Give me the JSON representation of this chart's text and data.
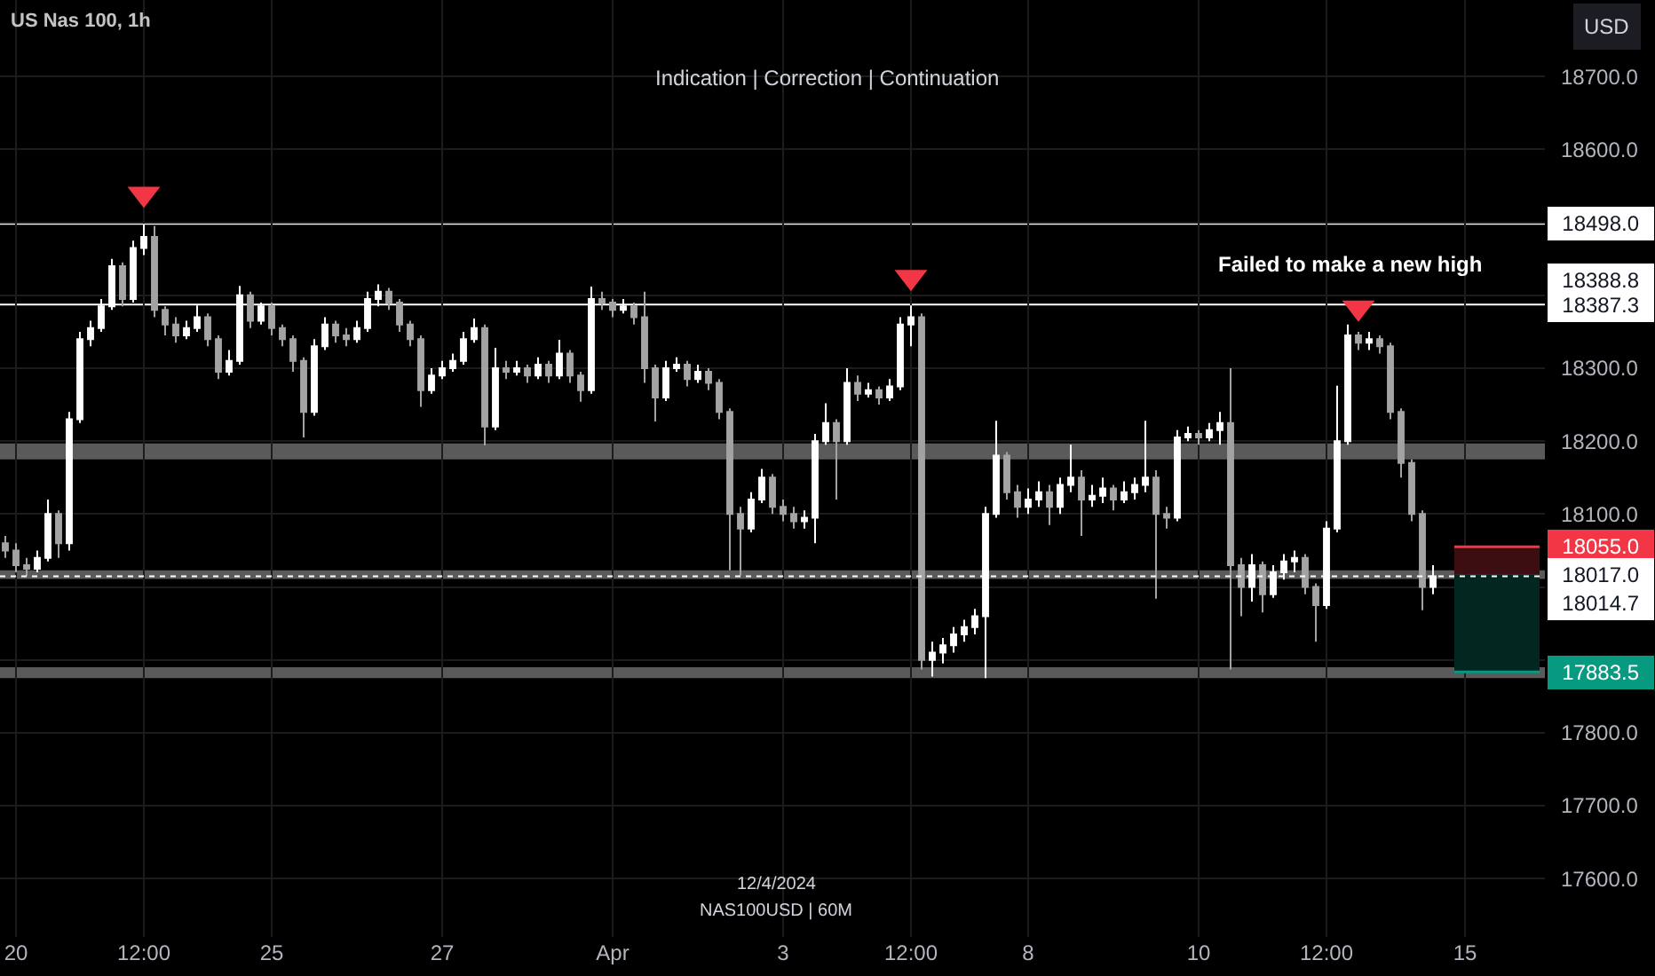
{
  "chart_data": {
    "type": "candlestick",
    "title": "US Nas 100, 1h",
    "subtitle": "Indication | Correction | Continuation",
    "ylabel": "USD",
    "annotations": [
      "Failed to make a new high",
      "12/4/2024",
      "NAS100USD | 60M",
      "18388.8"
    ],
    "categories": [
      null,
      "20",
      null,
      null,
      null,
      null,
      null,
      null,
      null,
      null,
      null,
      null,
      null,
      "12:00",
      null,
      null,
      null,
      null,
      null,
      null,
      null,
      null,
      null,
      null,
      null,
      "25",
      null,
      null,
      null,
      null,
      null,
      null,
      null,
      null,
      null,
      null,
      null,
      null,
      null,
      null,
      null,
      "27",
      null,
      null,
      null,
      null,
      null,
      null,
      null,
      null,
      null,
      null,
      null,
      null,
      null,
      null,
      null,
      "Apr",
      null,
      null,
      null,
      null,
      null,
      null,
      null,
      null,
      null,
      null,
      null,
      null,
      null,
      null,
      null,
      "3",
      null,
      null,
      null,
      null,
      null,
      null,
      null,
      null,
      null,
      null,
      null,
      "12:00",
      null,
      null,
      null,
      null,
      null,
      null,
      null,
      null,
      null,
      null,
      "8",
      null,
      null,
      null,
      null,
      null,
      null,
      null,
      null,
      null,
      null,
      null,
      null,
      null,
      null,
      null,
      "10",
      null,
      null,
      null,
      null,
      null,
      null,
      null,
      null,
      null,
      null,
      null,
      "12:00",
      null,
      null,
      null,
      null,
      null,
      null,
      null,
      null,
      null,
      null,
      null,
      null,
      "15",
      null,
      null,
      null,
      null,
      null,
      null,
      null
    ],
    "colors": [
      "#a3a3a3",
      "#a3a3a3",
      "#a3a3a3",
      "#ffffff",
      "#ffffff",
      "#a3a3a3",
      "#ffffff",
      "#ffffff",
      "#ffffff",
      "#ffffff",
      "#ffffff",
      "#a3a3a3",
      "#ffffff",
      "#ffffff",
      "#a3a3a3",
      "#a3a3a3",
      "#a3a3a3",
      "#ffffff",
      "#ffffff",
      "#a3a3a3",
      "#a3a3a3",
      "#ffffff",
      "#ffffff",
      "#a3a3a3",
      "#ffffff",
      "#a3a3a3",
      "#a3a3a3",
      "#a3a3a3",
      "#a3a3a3",
      "#ffffff",
      "#ffffff",
      "#a3a3a3",
      "#a3a3a3",
      "#ffffff",
      "#ffffff",
      "#ffffff",
      "#a3a3a3",
      "#a3a3a3",
      "#a3a3a3",
      "#a3a3a3",
      "#ffffff",
      "#ffffff",
      "#ffffff",
      "#ffffff",
      "#ffffff",
      "#a3a3a3",
      "#ffffff",
      "#a3a3a3",
      "#ffffff",
      "#a3a3a3",
      "#ffffff",
      "#a3a3a3",
      "#ffffff",
      "#a3a3a3",
      "#a3a3a3",
      "#ffffff",
      "#a3a3a3",
      "#a3a3a3",
      "#ffffff",
      "#a3a3a3",
      "#a3a3a3",
      "#a3a3a3",
      "#ffffff",
      "#ffffff",
      "#a3a3a3",
      "#ffffff",
      "#a3a3a3",
      "#a3a3a3",
      "#a3a3a3",
      "#a3a3a3",
      "#ffffff",
      "#ffffff",
      "#a3a3a3",
      "#a3a3a3",
      "#a3a3a3",
      "#ffffff",
      "#ffffff",
      "#ffffff",
      "#a3a3a3",
      "#ffffff",
      "#a3a3a3",
      "#ffffff",
      "#a3a3a3",
      "#ffffff",
      "#ffffff",
      "#ffffff",
      "#a3a3a3",
      "#ffffff",
      "#ffffff",
      "#ffffff",
      "#ffffff",
      "#ffffff",
      "#ffffff",
      "#ffffff",
      "#a3a3a3",
      "#a3a3a3",
      "#ffffff",
      "#ffffff",
      "#a3a3a3",
      "#ffffff",
      "#ffffff",
      "#a3a3a3",
      "#ffffff",
      "#ffffff",
      "#a3a3a3",
      "#ffffff",
      "#ffffff",
      "#ffffff",
      "#a3a3a3",
      "#a3a3a3",
      "#ffffff",
      "#ffffff",
      "#a3a3a3",
      "#ffffff",
      "#ffffff",
      "#a3a3a3",
      "#a3a3a3",
      "#ffffff",
      "#a3a3a3",
      "#ffffff",
      "#ffffff",
      "#ffffff",
      "#a3a3a3",
      "#a3a3a3",
      "#ffffff",
      "#ffffff",
      "#ffffff",
      "#a3a3a3",
      "#ffffff",
      "#a3a3a3",
      "#a3a3a3",
      "#a3a3a3",
      "#a3a3a3",
      "#a3a3a3",
      "#ffffff",
      null,
      null,
      null,
      null,
      null,
      null,
      null,
      null,
      null,
      null
    ],
    "ohlc": [
      [
        18060,
        18070,
        18040,
        18050
      ],
      [
        18050,
        18060,
        18020,
        18030
      ],
      [
        18030,
        18040,
        18015,
        18025
      ],
      [
        18025,
        18050,
        18020,
        18040
      ],
      [
        18040,
        18120,
        18035,
        18100
      ],
      [
        18100,
        18105,
        18040,
        18060
      ],
      [
        18060,
        18240,
        18050,
        18230
      ],
      [
        18230,
        18350,
        18225,
        18340
      ],
      [
        18340,
        18365,
        18330,
        18355
      ],
      [
        18355,
        18395,
        18350,
        18385
      ],
      [
        18385,
        18450,
        18380,
        18440
      ],
      [
        18440,
        18445,
        18385,
        18395
      ],
      [
        18395,
        18475,
        18390,
        18465
      ],
      [
        18465,
        18498,
        18455,
        18480
      ],
      [
        18480,
        18495,
        18370,
        18380
      ],
      [
        18380,
        18385,
        18345,
        18360
      ],
      [
        18360,
        18370,
        18335,
        18345
      ],
      [
        18345,
        18365,
        18340,
        18355
      ],
      [
        18355,
        18386,
        18350,
        18370
      ],
      [
        18370,
        18375,
        18330,
        18340
      ],
      [
        18340,
        18345,
        18285,
        18295
      ],
      [
        18295,
        18325,
        18290,
        18310
      ],
      [
        18310,
        18413,
        18305,
        18400
      ],
      [
        18400,
        18405,
        18355,
        18365
      ],
      [
        18365,
        18390,
        18360,
        18385
      ],
      [
        18385,
        18390,
        18345,
        18355
      ],
      [
        18355,
        18360,
        18330,
        18340
      ],
      [
        18340,
        18345,
        18295,
        18310
      ],
      [
        18310,
        18315,
        18205,
        18240
      ],
      [
        18240,
        18340,
        18235,
        18330
      ],
      [
        18330,
        18370,
        18325,
        18360
      ],
      [
        18360,
        18365,
        18335,
        18345
      ],
      [
        18345,
        18355,
        18330,
        18340
      ],
      [
        18340,
        18365,
        18335,
        18355
      ],
      [
        18355,
        18405,
        18350,
        18395
      ],
      [
        18395,
        18415,
        18385,
        18405
      ],
      [
        18405,
        18410,
        18380,
        18390
      ],
      [
        18390,
        18395,
        18350,
        18360
      ],
      [
        18360,
        18365,
        18330,
        18340
      ],
      [
        18340,
        18345,
        18247,
        18270
      ],
      [
        18270,
        18300,
        18265,
        18290
      ],
      [
        18290,
        18310,
        18285,
        18300
      ],
      [
        18300,
        18320,
        18295,
        18310
      ],
      [
        18310,
        18350,
        18305,
        18340
      ],
      [
        18340,
        18368,
        18335,
        18355
      ],
      [
        18355,
        18360,
        18194,
        18220
      ],
      [
        18220,
        18328,
        18215,
        18300
      ],
      [
        18300,
        18310,
        18285,
        18295
      ],
      [
        18295,
        18310,
        18290,
        18300
      ],
      [
        18300,
        18305,
        18280,
        18290
      ],
      [
        18290,
        18315,
        18285,
        18305
      ],
      [
        18305,
        18310,
        18280,
        18290
      ],
      [
        18290,
        18339,
        18285,
        18320
      ],
      [
        18320,
        18325,
        18280,
        18290
      ],
      [
        18290,
        18295,
        18254,
        18270
      ],
      [
        18270,
        18412,
        18265,
        18395
      ],
      [
        18395,
        18405,
        18380,
        18390
      ],
      [
        18390,
        18395,
        18370,
        18380
      ],
      [
        18380,
        18395,
        18375,
        18385
      ],
      [
        18385,
        18390,
        18360,
        18370
      ],
      [
        18370,
        18405,
        18280,
        18300
      ],
      [
        18300,
        18305,
        18227,
        18260
      ],
      [
        18260,
        18310,
        18255,
        18300
      ],
      [
        18300,
        18315,
        18295,
        18305
      ],
      [
        18305,
        18310,
        18275,
        18285
      ],
      [
        18285,
        18305,
        18280,
        18295
      ],
      [
        18295,
        18300,
        18270,
        18280
      ],
      [
        18280,
        18285,
        18230,
        18240
      ],
      [
        18240,
        18245,
        18023,
        18100
      ],
      [
        18100,
        18110,
        18016,
        18080
      ],
      [
        18080,
        18130,
        18075,
        18120
      ],
      [
        18120,
        18162,
        18115,
        18150
      ],
      [
        18150,
        18155,
        18100,
        18110
      ],
      [
        18110,
        18120,
        18090,
        18100
      ],
      [
        18100,
        18110,
        18080,
        18090
      ],
      [
        18090,
        18105,
        18080,
        18095
      ],
      [
        18095,
        18210,
        18060,
        18200
      ],
      [
        18200,
        18252,
        18195,
        18225
      ],
      [
        18225,
        18230,
        18120,
        18200
      ],
      [
        18200,
        18300,
        18195,
        18280
      ],
      [
        18280,
        18290,
        18255,
        18265
      ],
      [
        18265,
        18280,
        18260,
        18270
      ],
      [
        18270,
        18275,
        18250,
        18260
      ],
      [
        18260,
        18285,
        18255,
        18275
      ],
      [
        18275,
        18370,
        18270,
        18360
      ],
      [
        18360,
        18386,
        18330,
        18370
      ],
      [
        18370,
        18375,
        17887,
        17900
      ],
      [
        17900,
        17925,
        17877,
        17910
      ],
      [
        17910,
        17930,
        17895,
        17920
      ],
      [
        17920,
        17945,
        17910,
        17935
      ],
      [
        17935,
        17955,
        17925,
        17945
      ],
      [
        17945,
        17970,
        17935,
        17960
      ],
      [
        17960,
        18110,
        17875,
        18100
      ],
      [
        18100,
        18228,
        18095,
        18180
      ],
      [
        18180,
        18185,
        18120,
        18130
      ],
      [
        18130,
        18140,
        18095,
        18110
      ],
      [
        18110,
        18135,
        18100,
        18120
      ],
      [
        18120,
        18145,
        18110,
        18130
      ],
      [
        18130,
        18140,
        18085,
        18110
      ],
      [
        18110,
        18150,
        18100,
        18140
      ],
      [
        18140,
        18195,
        18130,
        18150
      ],
      [
        18150,
        18160,
        18070,
        18120
      ],
      [
        18120,
        18140,
        18110,
        18125
      ],
      [
        18125,
        18150,
        18115,
        18135
      ],
      [
        18135,
        18140,
        18105,
        18120
      ],
      [
        18120,
        18145,
        18115,
        18130
      ],
      [
        18130,
        18150,
        18120,
        18140
      ],
      [
        18140,
        18228,
        18130,
        18150
      ],
      [
        18150,
        18160,
        17984,
        18100
      ],
      [
        18100,
        18110,
        18080,
        18095
      ],
      [
        18095,
        18215,
        18090,
        18205
      ],
      [
        18205,
        18220,
        18200,
        18210
      ],
      [
        18210,
        18215,
        18195,
        18205
      ],
      [
        18205,
        18225,
        18200,
        18215
      ],
      [
        18215,
        18240,
        18195,
        18225
      ],
      [
        18225,
        18300,
        17887,
        18030
      ],
      [
        18030,
        18040,
        17960,
        18000
      ],
      [
        18000,
        18045,
        17980,
        18030
      ],
      [
        18030,
        18035,
        17965,
        17990
      ],
      [
        17990,
        18030,
        17985,
        18020
      ],
      [
        18020,
        18045,
        18010,
        18035
      ],
      [
        18035,
        18050,
        18020,
        18040
      ],
      [
        18040,
        18045,
        17990,
        18000
      ],
      [
        18000,
        18005,
        17925,
        17975
      ],
      [
        17975,
        18090,
        17970,
        18080
      ],
      [
        18080,
        18276,
        18075,
        18200
      ],
      [
        18200,
        18360,
        18195,
        18345
      ],
      [
        18345,
        18350,
        18325,
        18335
      ],
      [
        18335,
        18350,
        18325,
        18340
      ],
      [
        18340,
        18345,
        18320,
        18330
      ],
      [
        18330,
        18335,
        18230,
        18240
      ],
      [
        18240,
        18245,
        18150,
        18170
      ],
      [
        18170,
        18175,
        18090,
        18100
      ],
      [
        18100,
        18105,
        17968,
        18000
      ],
      [
        18000,
        18030,
        17990,
        18014.7
      ],
      null,
      null,
      null,
      null,
      null,
      null,
      null,
      null,
      null,
      null
    ],
    "series": [
      {
        "type": "line",
        "color": "#f23645",
        "values": [
          null,
          null,
          null,
          null,
          null,
          null,
          null,
          null,
          null,
          null,
          null,
          null,
          null,
          null,
          null,
          null,
          null,
          null,
          null,
          null,
          null,
          null,
          null,
          null,
          null,
          null,
          null,
          null,
          null,
          null,
          null,
          null,
          null,
          null,
          null,
          null,
          null,
          null,
          null,
          null,
          null,
          null,
          null,
          null,
          null,
          null,
          null,
          null,
          null,
          null,
          null,
          null,
          null,
          null,
          null,
          null,
          null,
          null,
          null,
          null,
          null,
          null,
          null,
          null,
          null,
          null,
          null,
          null,
          null,
          null,
          null,
          null,
          null,
          null,
          null,
          null,
          null,
          null,
          null,
          null,
          null,
          null,
          null,
          null,
          null,
          null,
          null,
          null,
          null,
          null,
          null,
          null,
          null,
          null,
          null,
          null,
          null,
          null,
          null,
          null,
          null,
          null,
          null,
          null,
          null,
          null,
          null,
          null,
          null,
          null,
          null,
          null,
          null,
          null,
          null,
          null,
          null,
          null,
          null,
          null,
          null,
          null,
          null,
          null,
          null,
          null,
          null,
          null,
          null,
          null,
          null,
          null,
          null,
          null,
          null,
          null,
          18055,
          18055,
          18055,
          18055,
          18055,
          18055,
          18055,
          18055,
          18055
        ],
        "upper": [
          null,
          null,
          null,
          null,
          null,
          null,
          null,
          null,
          null,
          null,
          null,
          null,
          null,
          null,
          null,
          null,
          null,
          null,
          null,
          null,
          null,
          null,
          null,
          null,
          null,
          null,
          null,
          null,
          null,
          null,
          null,
          null,
          null,
          null,
          null,
          null,
          null,
          null,
          null,
          null,
          null,
          null,
          null,
          null,
          null,
          null,
          null,
          null,
          null,
          null,
          null,
          null,
          null,
          null,
          null,
          null,
          null,
          null,
          null,
          null,
          null,
          null,
          null,
          null,
          null,
          null,
          null,
          null,
          null,
          null,
          null,
          null,
          null,
          null,
          null,
          null,
          null,
          null,
          null,
          null,
          null,
          null,
          null,
          null,
          null,
          null,
          null,
          null,
          null,
          null,
          null,
          null,
          null,
          null,
          null,
          null,
          null,
          null,
          null,
          null,
          null,
          null,
          null,
          null,
          null,
          null,
          null,
          null,
          null,
          null,
          null,
          null,
          null,
          null,
          null,
          null,
          null,
          null,
          null,
          null,
          null,
          null,
          null,
          null,
          null,
          null,
          null,
          null,
          null,
          null,
          null,
          null,
          null,
          null,
          null,
          null,
          18055,
          18055,
          18055,
          18055,
          18055,
          18055,
          18055,
          18055,
          18055
        ],
        "lower": [
          null,
          null,
          null,
          null,
          null,
          null,
          null,
          null,
          null,
          null,
          null,
          null,
          null,
          null,
          null,
          null,
          null,
          null,
          null,
          null,
          null,
          null,
          null,
          null,
          null,
          null,
          null,
          null,
          null,
          null,
          null,
          null,
          null,
          null,
          null,
          null,
          null,
          null,
          null,
          null,
          null,
          null,
          null,
          null,
          null,
          null,
          null,
          null,
          null,
          null,
          null,
          null,
          null,
          null,
          null,
          null,
          null,
          null,
          null,
          null,
          null,
          null,
          null,
          null,
          null,
          null,
          null,
          null,
          null,
          null,
          null,
          null,
          null,
          null,
          null,
          null,
          null,
          null,
          null,
          null,
          null,
          null,
          null,
          null,
          null,
          null,
          null,
          null,
          null,
          null,
          null,
          null,
          null,
          null,
          null,
          null,
          null,
          null,
          null,
          null,
          null,
          null,
          null,
          null,
          null,
          null,
          null,
          null,
          null,
          null,
          null,
          null,
          null,
          null,
          null,
          null,
          null,
          null,
          null,
          null,
          null,
          null,
          null,
          null,
          null,
          null,
          null,
          null,
          null,
          null,
          null,
          null,
          null,
          null,
          null,
          null,
          18017,
          18017,
          18017,
          18017,
          18017,
          18017,
          18017,
          18017,
          18017
        ],
        "value_labels": [
          null,
          null,
          null,
          null,
          null,
          null,
          null,
          null,
          null,
          null,
          null,
          null,
          null,
          null,
          null,
          null,
          null,
          null,
          null,
          null,
          null,
          null,
          null,
          null,
          null,
          null,
          null,
          null,
          null,
          null,
          null,
          null,
          null,
          null,
          null,
          null,
          null,
          null,
          null,
          null,
          null,
          null,
          null,
          null,
          null,
          null,
          null,
          null,
          null,
          null,
          null,
          null,
          null,
          null,
          null,
          null,
          null,
          null,
          null,
          null,
          null,
          null,
          null,
          null,
          null,
          null,
          null,
          null,
          null,
          null,
          null,
          null,
          null,
          null,
          null,
          null,
          null,
          null,
          null,
          null,
          null,
          null,
          null,
          null,
          null,
          null,
          null,
          null,
          null,
          null,
          null,
          null,
          null,
          null,
          null,
          null,
          null,
          null,
          null,
          null,
          null,
          null,
          null,
          null,
          null,
          null,
          null,
          null,
          null,
          null,
          null,
          null,
          null,
          null,
          null,
          null,
          null,
          null,
          null,
          null,
          null,
          null,
          null,
          null,
          null,
          null,
          null,
          null,
          null,
          null,
          null,
          null,
          null,
          null,
          null,
          null,
          null,
          null,
          null,
          null,
          null,
          null,
          null,
          null,
          "18055.0"
        ]
      },
      {
        "type": "line",
        "color": "#089981",
        "values": [
          null,
          null,
          null,
          null,
          null,
          null,
          null,
          null,
          null,
          null,
          null,
          null,
          null,
          null,
          null,
          null,
          null,
          null,
          null,
          null,
          null,
          null,
          null,
          null,
          null,
          null,
          null,
          null,
          null,
          null,
          null,
          null,
          null,
          null,
          null,
          null,
          null,
          null,
          null,
          null,
          null,
          null,
          null,
          null,
          null,
          null,
          null,
          null,
          null,
          null,
          null,
          null,
          null,
          null,
          null,
          null,
          null,
          null,
          null,
          null,
          null,
          null,
          null,
          null,
          null,
          null,
          null,
          null,
          null,
          null,
          null,
          null,
          null,
          null,
          null,
          null,
          null,
          null,
          null,
          null,
          null,
          null,
          null,
          null,
          null,
          null,
          null,
          null,
          null,
          null,
          null,
          null,
          null,
          null,
          null,
          null,
          null,
          null,
          null,
          null,
          null,
          null,
          null,
          null,
          null,
          null,
          null,
          null,
          null,
          null,
          null,
          null,
          null,
          null,
          null,
          null,
          null,
          null,
          null,
          null,
          null,
          null,
          null,
          null,
          null,
          null,
          null,
          null,
          null,
          null,
          null,
          null,
          null,
          null,
          null,
          null,
          17883.5,
          17883.5,
          17883.5,
          17883.5,
          17883.5,
          17883.5,
          17883.5,
          17883.5,
          17883.5
        ],
        "upper": [
          null,
          null,
          null,
          null,
          null,
          null,
          null,
          null,
          null,
          null,
          null,
          null,
          null,
          null,
          null,
          null,
          null,
          null,
          null,
          null,
          null,
          null,
          null,
          null,
          null,
          null,
          null,
          null,
          null,
          null,
          null,
          null,
          null,
          null,
          null,
          null,
          null,
          null,
          null,
          null,
          null,
          null,
          null,
          null,
          null,
          null,
          null,
          null,
          null,
          null,
          null,
          null,
          null,
          null,
          null,
          null,
          null,
          null,
          null,
          null,
          null,
          null,
          null,
          null,
          null,
          null,
          null,
          null,
          null,
          null,
          null,
          null,
          null,
          null,
          null,
          null,
          null,
          null,
          null,
          null,
          null,
          null,
          null,
          null,
          null,
          null,
          null,
          null,
          null,
          null,
          null,
          null,
          null,
          null,
          null,
          null,
          null,
          null,
          null,
          null,
          null,
          null,
          null,
          null,
          null,
          null,
          null,
          null,
          null,
          null,
          null,
          null,
          null,
          null,
          null,
          null,
          null,
          null,
          null,
          null,
          null,
          null,
          null,
          null,
          null,
          null,
          null,
          null,
          null,
          null,
          null,
          null,
          null,
          null,
          null,
          null,
          18017,
          18017,
          18017,
          18017,
          18017,
          18017,
          18017,
          18017,
          18017
        ],
        "lower": [
          null,
          null,
          null,
          null,
          null,
          null,
          null,
          null,
          null,
          null,
          null,
          null,
          null,
          null,
          null,
          null,
          null,
          null,
          null,
          null,
          null,
          null,
          null,
          null,
          null,
          null,
          null,
          null,
          null,
          null,
          null,
          null,
          null,
          null,
          null,
          null,
          null,
          null,
          null,
          null,
          null,
          null,
          null,
          null,
          null,
          null,
          null,
          null,
          null,
          null,
          null,
          null,
          null,
          null,
          null,
          null,
          null,
          null,
          null,
          null,
          null,
          null,
          null,
          null,
          null,
          null,
          null,
          null,
          null,
          null,
          null,
          null,
          null,
          null,
          null,
          null,
          null,
          null,
          null,
          null,
          null,
          null,
          null,
          null,
          null,
          null,
          null,
          null,
          null,
          null,
          null,
          null,
          null,
          null,
          null,
          null,
          null,
          null,
          null,
          null,
          null,
          null,
          null,
          null,
          null,
          null,
          null,
          null,
          null,
          null,
          null,
          null,
          null,
          null,
          null,
          null,
          null,
          null,
          null,
          null,
          null,
          null,
          null,
          null,
          null,
          null,
          null,
          null,
          null,
          null,
          null,
          null,
          null,
          null,
          null,
          null,
          17883.5,
          17883.5,
          17883.5,
          17883.5,
          17883.5,
          17883.5,
          17883.5,
          17883.5,
          17883.5
        ],
        "value_labels": [
          null,
          null,
          null,
          null,
          null,
          null,
          null,
          null,
          null,
          null,
          null,
          null,
          null,
          null,
          null,
          null,
          null,
          null,
          null,
          null,
          null,
          null,
          null,
          null,
          null,
          null,
          null,
          null,
          null,
          null,
          null,
          null,
          null,
          null,
          null,
          null,
          null,
          null,
          null,
          null,
          null,
          null,
          null,
          null,
          null,
          null,
          null,
          null,
          null,
          null,
          null,
          null,
          null,
          null,
          null,
          null,
          null,
          null,
          null,
          null,
          null,
          null,
          null,
          null,
          null,
          null,
          null,
          null,
          null,
          null,
          null,
          null,
          null,
          null,
          null,
          null,
          null,
          null,
          null,
          null,
          null,
          null,
          null,
          null,
          null,
          null,
          null,
          null,
          null,
          null,
          null,
          null,
          null,
          null,
          null,
          null,
          null,
          null,
          null,
          null,
          null,
          null,
          null,
          null,
          null,
          null,
          null,
          null,
          null,
          null,
          null,
          null,
          null,
          null,
          null,
          null,
          null,
          null,
          null,
          null,
          null,
          null,
          null,
          null,
          null,
          null,
          null,
          null,
          null,
          null,
          null,
          null,
          null,
          null,
          null,
          null,
          null,
          null,
          null,
          null,
          null,
          null,
          null,
          null,
          "17883.5"
        ]
      },
      {
        "type": "scatter",
        "color": "#f23645",
        "marker": "triangle",
        "values": [
          null,
          null,
          null,
          null,
          null,
          null,
          null,
          null,
          null,
          null,
          null,
          null,
          null,
          18539,
          null,
          null,
          null,
          null,
          null,
          null,
          null,
          null,
          null,
          null,
          null,
          null,
          null,
          null,
          null,
          null,
          null,
          null,
          null,
          null,
          null,
          null,
          null,
          null,
          null,
          null,
          null,
          null,
          null,
          null,
          null,
          null,
          null,
          null,
          null,
          null,
          null,
          null,
          null,
          null,
          null,
          null,
          null,
          null,
          null,
          null,
          null,
          null,
          null,
          null,
          null,
          null,
          null,
          null,
          null,
          null,
          null,
          null,
          null,
          null,
          null,
          null,
          null,
          null,
          null,
          null,
          null,
          null,
          null,
          null,
          null,
          18425,
          null,
          null,
          null,
          null,
          null,
          null,
          null,
          null,
          null,
          null,
          null,
          null,
          null,
          null,
          null,
          null,
          null,
          null,
          null,
          null,
          null,
          null,
          null,
          null,
          null,
          null,
          null,
          null,
          null,
          null,
          null,
          null,
          null,
          null,
          null,
          null,
          null,
          null,
          null,
          null,
          null,
          18383,
          null,
          null,
          null,
          null,
          null,
          null,
          null,
          null,
          null,
          null,
          null,
          null,
          null,
          null,
          null,
          null,
          null
        ]
      }
    ],
    "ylim": [
      17520,
      18805
    ],
    "yticks": [
      {
        "value": 17600,
        "label": "17600.0"
      },
      {
        "value": 17700,
        "label": "17700.0"
      },
      {
        "value": 17800,
        "label": "17800.0"
      },
      {
        "value": 17900,
        "label": null
      },
      {
        "value": 18000,
        "label": null
      },
      {
        "value": 18100,
        "label": "18100.0"
      },
      {
        "value": 18200,
        "label": "18200.0"
      },
      {
        "value": 18300,
        "label": "18300.0"
      },
      {
        "value": 18400,
        "label": null
      },
      {
        "value": 18500,
        "label": null
      },
      {
        "value": 18600,
        "label": "18600.0"
      },
      {
        "value": 18700,
        "label": "18700.0"
      }
    ],
    "ref_lines": [
      {
        "axis": "y",
        "value": 18498,
        "label": "18498.0",
        "color": "#ffffff"
      },
      {
        "axis": "y",
        "value": 18387.3,
        "label": "18387.3",
        "color": "#ffffff"
      },
      {
        "axis": "y",
        "value": 18014.7,
        "label": "18014.7",
        "color": "#ffffff",
        "line_style": "dotted"
      }
    ],
    "bands": [
      {
        "axis": "y",
        "from": 18175,
        "to": 18197,
        "color": "#5a5a5a"
      },
      {
        "axis": "y",
        "from": 18011,
        "to": 18023,
        "color": "#5a5a5a",
        "label": "18017.0"
      },
      {
        "axis": "y",
        "from": 17875,
        "to": 17890,
        "color": "#5a5a5a"
      }
    ],
    "grid": true
  }
}
